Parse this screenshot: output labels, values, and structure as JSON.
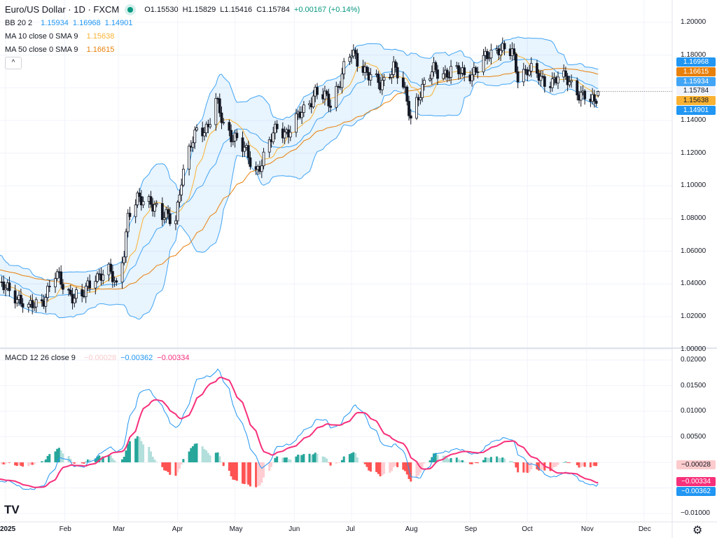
{
  "header": {
    "symbol": "Euro/US Dollar · 1D · FXCM",
    "market_status_color": "#089981",
    "open": "O1.15530",
    "high": "H1.15829",
    "low": "L1.15416",
    "close": "C1.15784",
    "change": "+0.00167 (+0.14%)"
  },
  "indicators": {
    "bb": {
      "label": "BB 20 2",
      "basis": "1.15934",
      "upper": "1.16968",
      "lower": "1.14901",
      "color": "#2196f3"
    },
    "ma10": {
      "label": "MA 10 close 0 SMA 9",
      "value": "1.15638",
      "color": "#f9b233"
    },
    "ma50": {
      "label": "MA 50 close 0 SMA 9",
      "value": "1.16615",
      "color": "#e8800c"
    },
    "macd": {
      "label": "MACD 12 26 close 9",
      "histogram": "−0.00028",
      "macd": "−0.00362",
      "signal": "−0.00334",
      "macd_color": "#2196f3",
      "signal_color": "#f7307b"
    },
    "collapse_icon": "chevron-up-icon"
  },
  "price_scale": {
    "ticks": [
      "1.20000",
      "1.18000",
      "1.14000",
      "1.12000",
      "1.10000",
      "1.08000",
      "1.06000",
      "1.04000",
      "1.02000",
      "1.00000"
    ],
    "labels": [
      {
        "text": "1.16968",
        "bg": "#2196f3",
        "fg": "#ffffff"
      },
      {
        "text": "1.16615",
        "bg": "#e8800c",
        "fg": "#ffffff"
      },
      {
        "text": "1.15934",
        "bg": "#42a5f5",
        "fg": "#ffffff"
      },
      {
        "text": "1.15784",
        "bg": "#f0f3fa",
        "fg": "#131722"
      },
      {
        "text": "1.15638",
        "bg": "#f9b233",
        "fg": "#131722"
      },
      {
        "text": "1.14901",
        "bg": "#2196f3",
        "fg": "#ffffff"
      }
    ]
  },
  "macd_scale": {
    "ticks": [
      "0.02000",
      "0.01500",
      "0.01000",
      "0.00500",
      "−0.01000"
    ],
    "labels": [
      {
        "text": "−0.00028",
        "bg": "#fccbcd",
        "fg": "#131722"
      },
      {
        "text": "−0.00334",
        "bg": "#f7307b",
        "fg": "#ffffff"
      },
      {
        "text": "−0.00362",
        "bg": "#2196f3",
        "fg": "#ffffff"
      }
    ]
  },
  "time_axis": [
    "2025",
    "Feb",
    "Mar",
    "Apr",
    "May",
    "Jun",
    "Jul",
    "Aug",
    "Sep",
    "Oct",
    "Nov",
    "Dec"
  ],
  "chart_data": {
    "type": "candlestick",
    "title": "Euro/US Dollar · 1D · FXCM",
    "ylim": [
      1.0,
      1.2
    ],
    "macd_ylim": [
      -0.011,
      0.021
    ],
    "grid": true,
    "colors": {
      "up": "#ffffff",
      "down": "#131722",
      "bb_fill": "#2196f3"
    },
    "closes": [
      [
        "2024-11-15",
        1.055
      ],
      [
        "2024-12-05",
        1.052
      ],
      [
        "2024-12-20",
        1.042
      ],
      [
        "2025-01-02",
        1.036
      ],
      [
        "2025-01-08",
        1.032
      ],
      [
        "2025-01-13",
        1.024
      ],
      [
        "2025-01-20",
        1.03
      ],
      [
        "2025-01-27",
        1.045
      ],
      [
        "2025-02-03",
        1.035
      ],
      [
        "2025-02-10",
        1.031
      ],
      [
        "2025-02-17",
        1.046
      ],
      [
        "2025-02-24",
        1.047
      ],
      [
        "2025-02-28",
        1.038
      ],
      [
        "2025-03-04",
        1.062
      ],
      [
        "2025-03-06",
        1.082
      ],
      [
        "2025-03-11",
        1.09
      ],
      [
        "2025-03-18",
        1.092
      ],
      [
        "2025-03-24",
        1.08
      ],
      [
        "2025-03-31",
        1.081
      ],
      [
        "2025-04-03",
        1.105
      ],
      [
        "2025-04-11",
        1.134
      ],
      [
        "2025-04-17",
        1.137
      ],
      [
        "2025-04-21",
        1.151
      ],
      [
        "2025-04-25",
        1.137
      ],
      [
        "2025-05-01",
        1.13
      ],
      [
        "2025-05-12",
        1.11
      ],
      [
        "2025-05-16",
        1.117
      ],
      [
        "2025-05-23",
        1.136
      ],
      [
        "2025-05-29",
        1.133
      ],
      [
        "2025-06-03",
        1.141
      ],
      [
        "2025-06-12",
        1.158
      ],
      [
        "2025-06-20",
        1.15
      ],
      [
        "2025-06-27",
        1.172
      ],
      [
        "2025-07-01",
        1.18
      ],
      [
        "2025-07-08",
        1.172
      ],
      [
        "2025-07-16",
        1.16
      ],
      [
        "2025-07-23",
        1.175
      ],
      [
        "2025-07-28",
        1.159
      ],
      [
        "2025-08-01",
        1.141
      ],
      [
        "2025-08-05",
        1.157
      ],
      [
        "2025-08-13",
        1.17
      ],
      [
        "2025-08-22",
        1.17
      ],
      [
        "2025-08-29",
        1.168
      ],
      [
        "2025-09-05",
        1.172
      ],
      [
        "2025-09-16",
        1.186
      ],
      [
        "2025-09-23",
        1.18
      ],
      [
        "2025-09-26",
        1.167
      ],
      [
        "2025-10-01",
        1.173
      ],
      [
        "2025-10-09",
        1.163
      ],
      [
        "2025-10-17",
        1.167
      ],
      [
        "2025-10-24",
        1.162
      ],
      [
        "2025-10-30",
        1.156
      ],
      [
        "2025-11-05",
        1.149
      ],
      [
        "2025-11-07",
        1.1578
      ]
    ]
  }
}
